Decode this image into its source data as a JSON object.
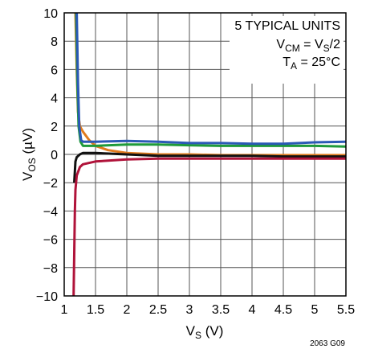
{
  "chart_data": {
    "type": "line",
    "xlabel": {
      "main": "V",
      "sub": "S",
      "tail": " (V)"
    },
    "ylabel": {
      "main": "V",
      "sub": "OS",
      "tail": " (µV)"
    },
    "xlim": [
      1,
      5.5
    ],
    "ylim": [
      -10,
      10
    ],
    "x_ticks": [
      "1",
      "1.5",
      "2",
      "2.5",
      "3",
      "3.5",
      "4",
      "4.5",
      "5",
      "5.5"
    ],
    "y_ticks": [
      "10",
      "8",
      "6",
      "4",
      "2",
      "0",
      "−2",
      "−4",
      "−6",
      "−8",
      "−10"
    ],
    "grid": true,
    "annotation": {
      "line1": "5 TYPICAL UNITS",
      "line2": {
        "a": "V",
        "a_sub": "CM",
        "b": " = V",
        "b_sub": "S",
        "c": "/2"
      },
      "line3": {
        "a": "T",
        "a_sub": "A",
        "b": " = 25°C"
      }
    },
    "figure_code": "2063 G09",
    "series": [
      {
        "color": "#e07b1e",
        "points": [
          [
            1.18,
            10
          ],
          [
            1.2,
            6
          ],
          [
            1.22,
            3
          ],
          [
            1.25,
            2.0
          ],
          [
            1.3,
            1.6
          ],
          [
            1.4,
            1.0
          ],
          [
            1.5,
            0.6
          ],
          [
            1.7,
            0.3
          ],
          [
            2,
            0.1
          ],
          [
            2.5,
            0.0
          ],
          [
            3,
            0.0
          ],
          [
            3.5,
            -0.05
          ],
          [
            4,
            -0.05
          ],
          [
            4.5,
            -0.05
          ],
          [
            5,
            -0.05
          ],
          [
            5.5,
            -0.05
          ]
        ]
      },
      {
        "color": "#1e9a3a",
        "points": [
          [
            1.19,
            10
          ],
          [
            1.21,
            5
          ],
          [
            1.23,
            2
          ],
          [
            1.26,
            0.9
          ],
          [
            1.3,
            0.6
          ],
          [
            1.5,
            0.6
          ],
          [
            2,
            0.7
          ],
          [
            2.5,
            0.7
          ],
          [
            3,
            0.65
          ],
          [
            3.5,
            0.6
          ],
          [
            4,
            0.6
          ],
          [
            4.5,
            0.6
          ],
          [
            5,
            0.6
          ],
          [
            5.5,
            0.55
          ]
        ]
      },
      {
        "color": "#2a59b5",
        "points": [
          [
            1.2,
            10
          ],
          [
            1.22,
            5
          ],
          [
            1.24,
            2
          ],
          [
            1.27,
            1.0
          ],
          [
            1.3,
            0.9
          ],
          [
            1.5,
            0.9
          ],
          [
            2,
            0.95
          ],
          [
            2.5,
            0.9
          ],
          [
            3,
            0.8
          ],
          [
            3.5,
            0.8
          ],
          [
            4,
            0.75
          ],
          [
            4.5,
            0.75
          ],
          [
            5,
            0.85
          ],
          [
            5.5,
            0.9
          ]
        ]
      },
      {
        "color": "#111111",
        "points": [
          [
            1.16,
            -2
          ],
          [
            1.17,
            -1.2
          ],
          [
            1.18,
            -0.5
          ],
          [
            1.2,
            -0.2
          ],
          [
            1.25,
            0.0
          ],
          [
            1.3,
            0.1
          ],
          [
            1.5,
            0.1
          ],
          [
            2,
            0.0
          ],
          [
            2.5,
            -0.1
          ],
          [
            3,
            -0.1
          ],
          [
            3.5,
            -0.1
          ],
          [
            4,
            -0.1
          ],
          [
            4.5,
            -0.15
          ],
          [
            5,
            -0.15
          ],
          [
            5.5,
            -0.15
          ]
        ]
      },
      {
        "color": "#b0133a",
        "points": [
          [
            1.15,
            -10
          ],
          [
            1.16,
            -7
          ],
          [
            1.17,
            -4
          ],
          [
            1.18,
            -2.5
          ],
          [
            1.2,
            -1.5
          ],
          [
            1.25,
            -0.9
          ],
          [
            1.3,
            -0.7
          ],
          [
            1.5,
            -0.5
          ],
          [
            2,
            -0.35
          ],
          [
            2.5,
            -0.3
          ],
          [
            3,
            -0.3
          ],
          [
            3.5,
            -0.3
          ],
          [
            4,
            -0.3
          ],
          [
            4.5,
            -0.3
          ],
          [
            5,
            -0.3
          ],
          [
            5.5,
            -0.3
          ]
        ]
      }
    ]
  }
}
